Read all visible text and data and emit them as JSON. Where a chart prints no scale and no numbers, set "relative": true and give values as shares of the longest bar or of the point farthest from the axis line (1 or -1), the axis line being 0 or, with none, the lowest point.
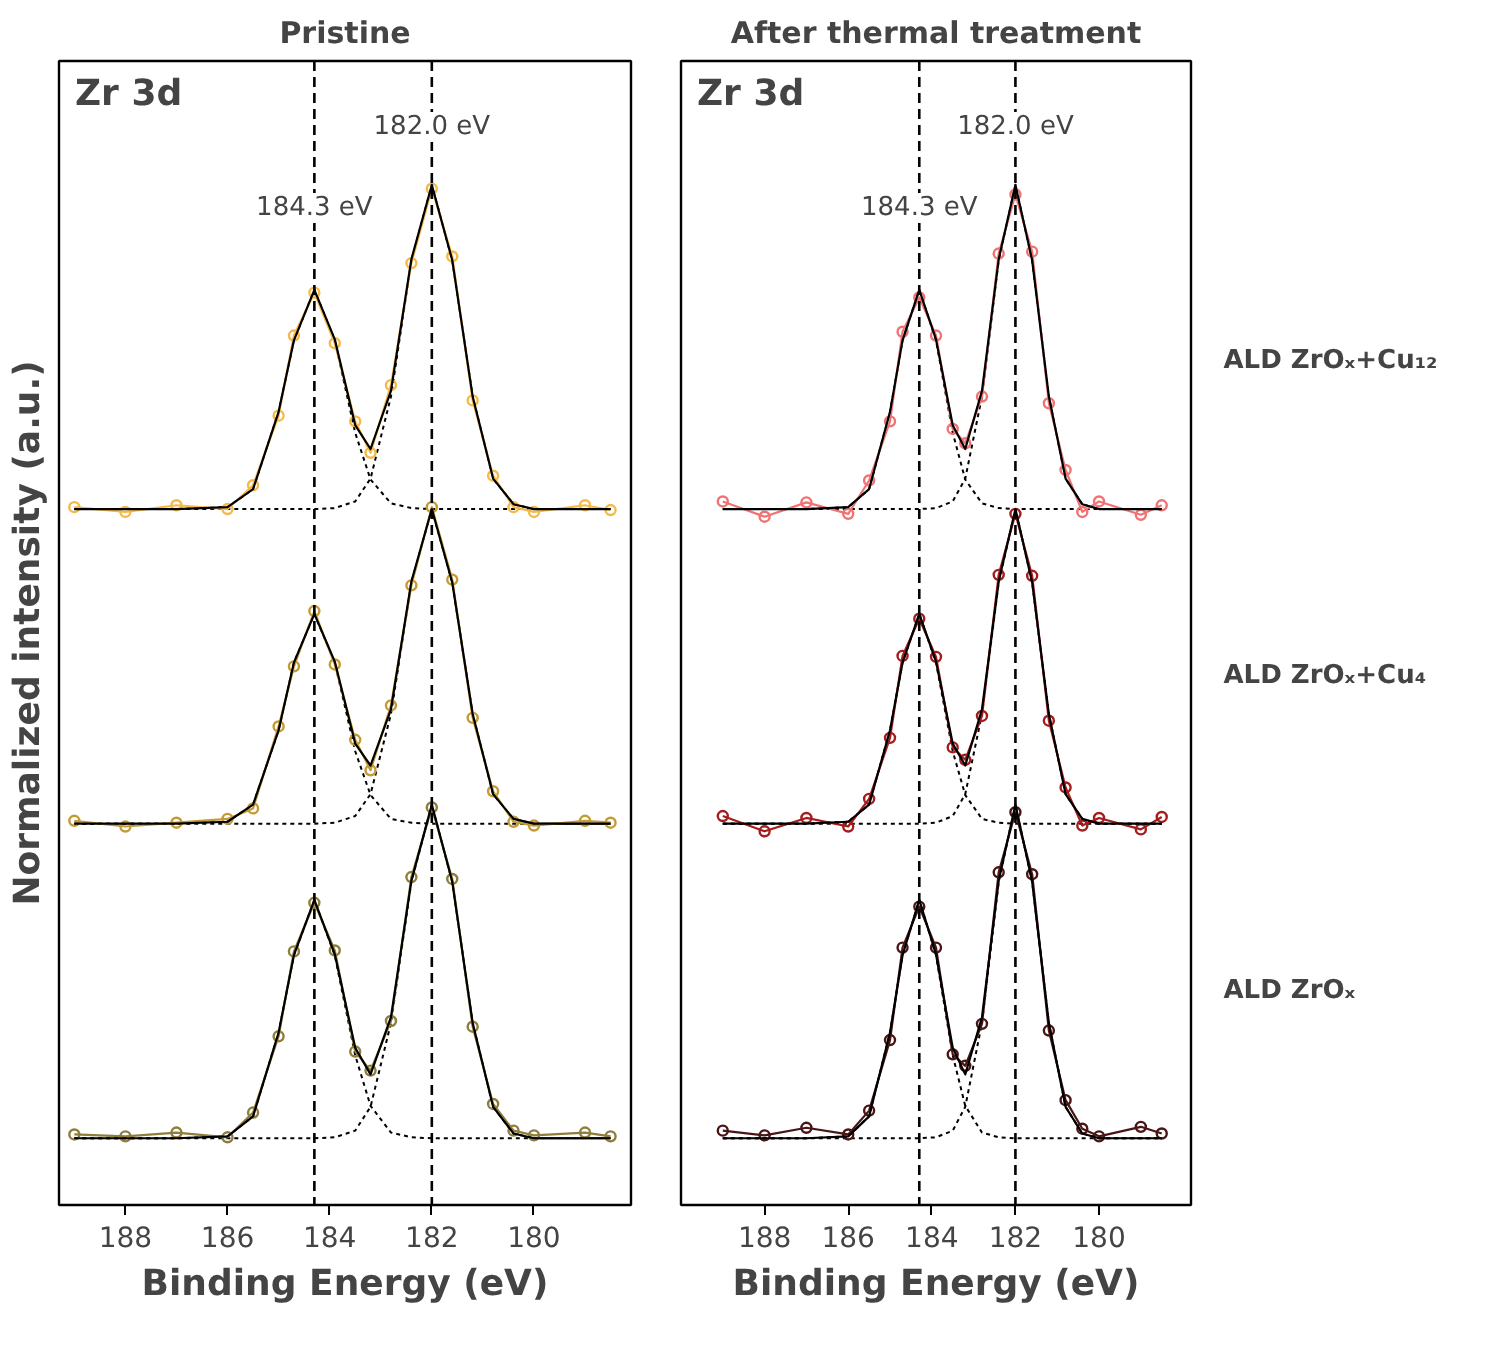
{
  "chart_data": [
    {
      "type": "line",
      "title": "Pristine",
      "xlabel": "Binding Energy (eV)",
      "ylabel": "Normalized intensity (a.u.)",
      "relative": true,
      "tick_labels": "x",
      "grid": false,
      "xlim": [
        189.3,
        178.1
      ],
      "xticks": [
        188,
        186,
        184,
        182,
        180
      ],
      "x": [
        189,
        188,
        187,
        186,
        185.5,
        185,
        184.7,
        184.3,
        183.9,
        183.5,
        183.2,
        182.8,
        182.4,
        182,
        181.6,
        181.2,
        180.8,
        180.4,
        180,
        179,
        178.5
      ],
      "annotations": [
        "Zr 3d"
      ],
      "ref_lines": [
        {
          "axis": "x",
          "value": 184.3,
          "label": "184.3 eV",
          "color": "#000000",
          "line_style": "dashed"
        },
        {
          "axis": "x",
          "value": 182.0,
          "label": "182.0 eV",
          "color": "#000000",
          "line_style": "dashed"
        }
      ],
      "series": [
        {
          "type": "line",
          "line_style": "dotted",
          "marker": "none",
          "color": "#000000",
          "values": [
            0.66,
            0.66,
            0.66,
            0.662,
            0.681,
            0.762,
            0.837,
            0.89,
            0.837,
            0.74,
            0.691,
            0.666,
            0.661,
            0.66,
            0.66,
            0.66,
            0.66,
            0.66,
            0.66,
            0.66,
            0.66
          ]
        },
        {
          "type": "line",
          "line_style": "dotted",
          "marker": "none",
          "color": "#000000",
          "values": [
            0.66,
            0.66,
            0.66,
            0.66,
            0.66,
            0.66,
            0.66,
            0.66,
            0.661,
            0.668,
            0.692,
            0.778,
            0.921,
            1.0,
            0.921,
            0.778,
            0.692,
            0.665,
            0.66,
            0.66,
            0.66
          ]
        },
        {
          "type": "line",
          "line_style": "dotted",
          "marker": "none",
          "color": "#000000",
          "values": [
            0.33,
            0.33,
            0.33,
            0.332,
            0.35,
            0.428,
            0.499,
            0.55,
            0.499,
            0.406,
            0.36,
            0.335,
            0.331,
            0.33,
            0.33,
            0.33,
            0.33,
            0.33,
            0.33,
            0.33,
            0.33
          ]
        },
        {
          "type": "line",
          "line_style": "dotted",
          "marker": "none",
          "color": "#000000",
          "values": [
            0.33,
            0.33,
            0.33,
            0.33,
            0.33,
            0.33,
            0.33,
            0.33,
            0.331,
            0.338,
            0.361,
            0.445,
            0.583,
            0.66,
            0.583,
            0.445,
            0.361,
            0.335,
            0.33,
            0.33,
            0.33
          ]
        },
        {
          "type": "line",
          "line_style": "dotted",
          "marker": "none",
          "color": "#000000",
          "values": [
            0,
            0,
            0,
            0.002,
            0.023,
            0.111,
            0.192,
            0.25,
            0.192,
            0.087,
            0.034,
            0.006,
            0.001,
            0,
            0,
            0,
            0,
            0,
            0,
            0,
            0
          ]
        },
        {
          "type": "line",
          "line_style": "dotted",
          "marker": "none",
          "color": "#000000",
          "values": [
            0,
            0,
            0,
            0,
            0,
            0,
            0,
            0,
            0.001,
            0.008,
            0.033,
            0.121,
            0.269,
            0.35,
            0.269,
            0.121,
            0.033,
            0.005,
            0,
            0,
            0
          ]
        },
        {
          "line_style": "solid",
          "marker": "circle",
          "color": "#f5b94a",
          "values": [
            0.662,
            0.657,
            0.664,
            0.66,
            0.685,
            0.758,
            0.842,
            0.887,
            0.834,
            0.752,
            0.719,
            0.79,
            0.918,
            0.996,
            0.925,
            0.774,
            0.695,
            0.662,
            0.657,
            0.664,
            0.659
          ]
        },
        {
          "line_style": "solid",
          "marker": "circle",
          "color": "#c49a35",
          "values": [
            0.333,
            0.327,
            0.331,
            0.335,
            0.346,
            0.432,
            0.495,
            0.553,
            0.497,
            0.418,
            0.386,
            0.454,
            0.58,
            0.662,
            0.586,
            0.441,
            0.364,
            0.332,
            0.328,
            0.333,
            0.331
          ]
        },
        {
          "line_style": "solid",
          "marker": "circle",
          "color": "#8f7d3c",
          "values": [
            0.004,
            0.002,
            0.006,
            0.001,
            0.027,
            0.107,
            0.196,
            0.247,
            0.197,
            0.091,
            0.071,
            0.123,
            0.274,
            0.347,
            0.272,
            0.117,
            0.036,
            0.008,
            0.003,
            0.006,
            0.002
          ]
        },
        {
          "type": "line",
          "line_style": "solid",
          "marker": "none",
          "color": "#000000",
          "values": [
            0.66,
            0.66,
            0.66,
            0.662,
            0.681,
            0.762,
            0.837,
            0.89,
            0.838,
            0.748,
            0.723,
            0.784,
            0.922,
            1.0,
            0.921,
            0.778,
            0.692,
            0.665,
            0.66,
            0.66,
            0.66
          ]
        },
        {
          "type": "line",
          "line_style": "solid",
          "marker": "none",
          "color": "#000000",
          "values": [
            0.33,
            0.33,
            0.33,
            0.332,
            0.35,
            0.428,
            0.499,
            0.55,
            0.5,
            0.414,
            0.391,
            0.45,
            0.584,
            0.66,
            0.583,
            0.445,
            0.361,
            0.335,
            0.33,
            0.33,
            0.33
          ]
        },
        {
          "type": "line",
          "line_style": "solid",
          "marker": "none",
          "color": "#000000",
          "values": [
            0,
            0,
            0,
            0.002,
            0.023,
            0.111,
            0.192,
            0.25,
            0.193,
            0.095,
            0.067,
            0.127,
            0.27,
            0.35,
            0.269,
            0.121,
            0.033,
            0.005,
            0,
            0,
            0
          ]
        }
      ]
    },
    {
      "type": "line",
      "title": "After thermal treatment",
      "xlabel": "Binding Energy (eV)",
      "relative": true,
      "tick_labels": "x",
      "grid": false,
      "xlim": [
        190.0,
        177.8
      ],
      "xticks": [
        188,
        186,
        184,
        182,
        180
      ],
      "x": [
        189,
        188,
        187,
        186,
        185.5,
        185,
        184.7,
        184.3,
        183.9,
        183.5,
        183.2,
        182.8,
        182.4,
        182,
        181.6,
        181.2,
        180.8,
        180.4,
        180,
        179,
        178.5
      ],
      "annotations": [
        "Zr 3d"
      ],
      "ref_lines": [
        {
          "axis": "x",
          "value": 184.3,
          "label": "184.3 eV",
          "color": "#000000",
          "line_style": "dashed"
        },
        {
          "axis": "x",
          "value": 182.0,
          "label": "182.0 eV",
          "color": "#000000",
          "line_style": "dashed"
        }
      ],
      "series": [
        {
          "type": "line",
          "line_style": "dotted",
          "marker": "none",
          "color": "#000000",
          "values": [
            0.66,
            0.66,
            0.66,
            0.662,
            0.681,
            0.762,
            0.837,
            0.89,
            0.837,
            0.74,
            0.691,
            0.666,
            0.661,
            0.66,
            0.66,
            0.66,
            0.66,
            0.66,
            0.66,
            0.66,
            0.66
          ]
        },
        {
          "type": "line",
          "line_style": "dotted",
          "marker": "none",
          "color": "#000000",
          "values": [
            0.66,
            0.66,
            0.66,
            0.66,
            0.66,
            0.66,
            0.66,
            0.66,
            0.661,
            0.668,
            0.692,
            0.778,
            0.921,
            1.0,
            0.921,
            0.778,
            0.692,
            0.665,
            0.66,
            0.66,
            0.66
          ]
        },
        {
          "type": "line",
          "line_style": "dotted",
          "marker": "none",
          "color": "#000000",
          "values": [
            0.33,
            0.33,
            0.33,
            0.332,
            0.35,
            0.428,
            0.499,
            0.55,
            0.499,
            0.406,
            0.36,
            0.335,
            0.331,
            0.33,
            0.33,
            0.33,
            0.33,
            0.33,
            0.33,
            0.33,
            0.33
          ]
        },
        {
          "type": "line",
          "line_style": "dotted",
          "marker": "none",
          "color": "#000000",
          "values": [
            0.33,
            0.33,
            0.33,
            0.33,
            0.33,
            0.33,
            0.33,
            0.33,
            0.331,
            0.338,
            0.361,
            0.445,
            0.583,
            0.66,
            0.583,
            0.445,
            0.361,
            0.335,
            0.33,
            0.33,
            0.33
          ]
        },
        {
          "type": "line",
          "line_style": "dotted",
          "marker": "none",
          "color": "#000000",
          "values": [
            0,
            0,
            0,
            0.002,
            0.023,
            0.111,
            0.192,
            0.25,
            0.192,
            0.087,
            0.034,
            0.006,
            0.001,
            0,
            0,
            0,
            0,
            0,
            0,
            0,
            0
          ]
        },
        {
          "type": "line",
          "line_style": "dotted",
          "marker": "none",
          "color": "#000000",
          "values": [
            0,
            0,
            0,
            0,
            0,
            0,
            0,
            0,
            0.001,
            0.008,
            0.033,
            0.121,
            0.269,
            0.35,
            0.269,
            0.121,
            0.033,
            0.005,
            0,
            0,
            0
          ]
        },
        {
          "line_style": "solid",
          "marker": "circle",
          "color": "#f07272",
          "name": "ALD ZrOₓ+Cu₁₂",
          "values": [
            0.668,
            0.652,
            0.667,
            0.655,
            0.69,
            0.752,
            0.846,
            0.882,
            0.842,
            0.744,
            0.729,
            0.778,
            0.928,
            0.99,
            0.93,
            0.771,
            0.701,
            0.657,
            0.668,
            0.654,
            0.664
          ]
        },
        {
          "line_style": "solid",
          "marker": "circle",
          "color": "#a51c1c",
          "name": "ALD ZrOₓ+Cu₄",
          "values": [
            0.338,
            0.322,
            0.336,
            0.327,
            0.356,
            0.42,
            0.506,
            0.545,
            0.505,
            0.41,
            0.397,
            0.443,
            0.591,
            0.655,
            0.59,
            0.438,
            0.368,
            0.328,
            0.336,
            0.324,
            0.337
          ]
        },
        {
          "line_style": "solid",
          "marker": "circle",
          "color": "#4a1515",
          "name": "ALD ZrOₓ",
          "values": [
            0.008,
            0.003,
            0.011,
            0.004,
            0.029,
            0.103,
            0.2,
            0.243,
            0.2,
            0.088,
            0.076,
            0.12,
            0.279,
            0.342,
            0.277,
            0.113,
            0.04,
            0.01,
            0.002,
            0.012,
            0.005
          ]
        },
        {
          "type": "line",
          "line_style": "solid",
          "marker": "none",
          "color": "#000000",
          "values": [
            0.66,
            0.66,
            0.66,
            0.662,
            0.681,
            0.762,
            0.837,
            0.89,
            0.838,
            0.748,
            0.723,
            0.784,
            0.922,
            1.0,
            0.921,
            0.778,
            0.692,
            0.665,
            0.66,
            0.66,
            0.66
          ]
        },
        {
          "type": "line",
          "line_style": "solid",
          "marker": "none",
          "color": "#000000",
          "values": [
            0.33,
            0.33,
            0.33,
            0.332,
            0.35,
            0.428,
            0.499,
            0.55,
            0.5,
            0.414,
            0.391,
            0.45,
            0.584,
            0.66,
            0.583,
            0.445,
            0.361,
            0.335,
            0.33,
            0.33,
            0.33
          ]
        },
        {
          "type": "line",
          "line_style": "solid",
          "marker": "none",
          "color": "#000000",
          "values": [
            0,
            0,
            0,
            0.002,
            0.023,
            0.111,
            0.192,
            0.25,
            0.193,
            0.095,
            0.067,
            0.127,
            0.27,
            0.35,
            0.269,
            0.121,
            0.033,
            0.005,
            0,
            0,
            0
          ]
        }
      ]
    }
  ]
}
